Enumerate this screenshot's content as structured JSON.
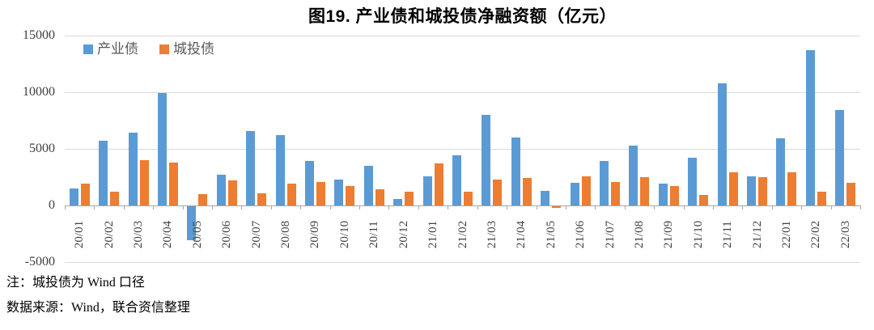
{
  "title": "图19.  产业债和城投债净融资额（亿元）",
  "legend": {
    "items": [
      {
        "label": "产业债",
        "color": "#5B9BD5"
      },
      {
        "label": "城投债",
        "color": "#ED7D31"
      }
    ]
  },
  "notes": {
    "note1": "注：城投债为 Wind 口径",
    "note2": "数据来源：Wind，联合资信整理"
  },
  "colors": {
    "series1": "#5B9BD5",
    "series2": "#ED7D31",
    "gridline": "#d9d9d9",
    "axis": "#a6a6a6"
  },
  "chart_data": {
    "type": "bar",
    "title": "图19.  产业债和城投债净融资额（亿元）",
    "categories": [
      "20/01",
      "20/02",
      "20/03",
      "20/04",
      "20/05",
      "20/06",
      "20/07",
      "20/08",
      "20/09",
      "20/10",
      "20/11",
      "20/12",
      "21/01",
      "21/02",
      "21/03",
      "21/04",
      "21/05",
      "21/06",
      "21/07",
      "21/08",
      "21/09",
      "21/10",
      "21/11",
      "21/12",
      "22/01",
      "22/02",
      "22/03"
    ],
    "series": [
      {
        "name": "产业债",
        "color": "#5B9BD5",
        "values": [
          1500,
          5700,
          6400,
          9900,
          -3000,
          2700,
          6600,
          6200,
          3900,
          2300,
          3500,
          600,
          2600,
          4400,
          8000,
          6000,
          1300,
          2000,
          3900,
          5300,
          1900,
          4200,
          10800,
          2600,
          5900,
          13700,
          8400
        ]
      },
      {
        "name": "城投债",
        "color": "#ED7D31",
        "values": [
          1900,
          1200,
          4000,
          3800,
          1000,
          2200,
          1100,
          1900,
          2100,
          1700,
          1400,
          1200,
          3700,
          1200,
          2300,
          2400,
          -150,
          2600,
          2100,
          2500,
          1700,
          900,
          2900,
          2500,
          2900,
          1200,
          2000
        ]
      }
    ],
    "ylim": [
      -5000,
      15000
    ],
    "yticks": [
      15000,
      10000,
      5000,
      0,
      -5000
    ],
    "xlabel": "",
    "ylabel": "",
    "grid": true,
    "legend_position": "top-left",
    "x_tick_rotation": -90
  }
}
